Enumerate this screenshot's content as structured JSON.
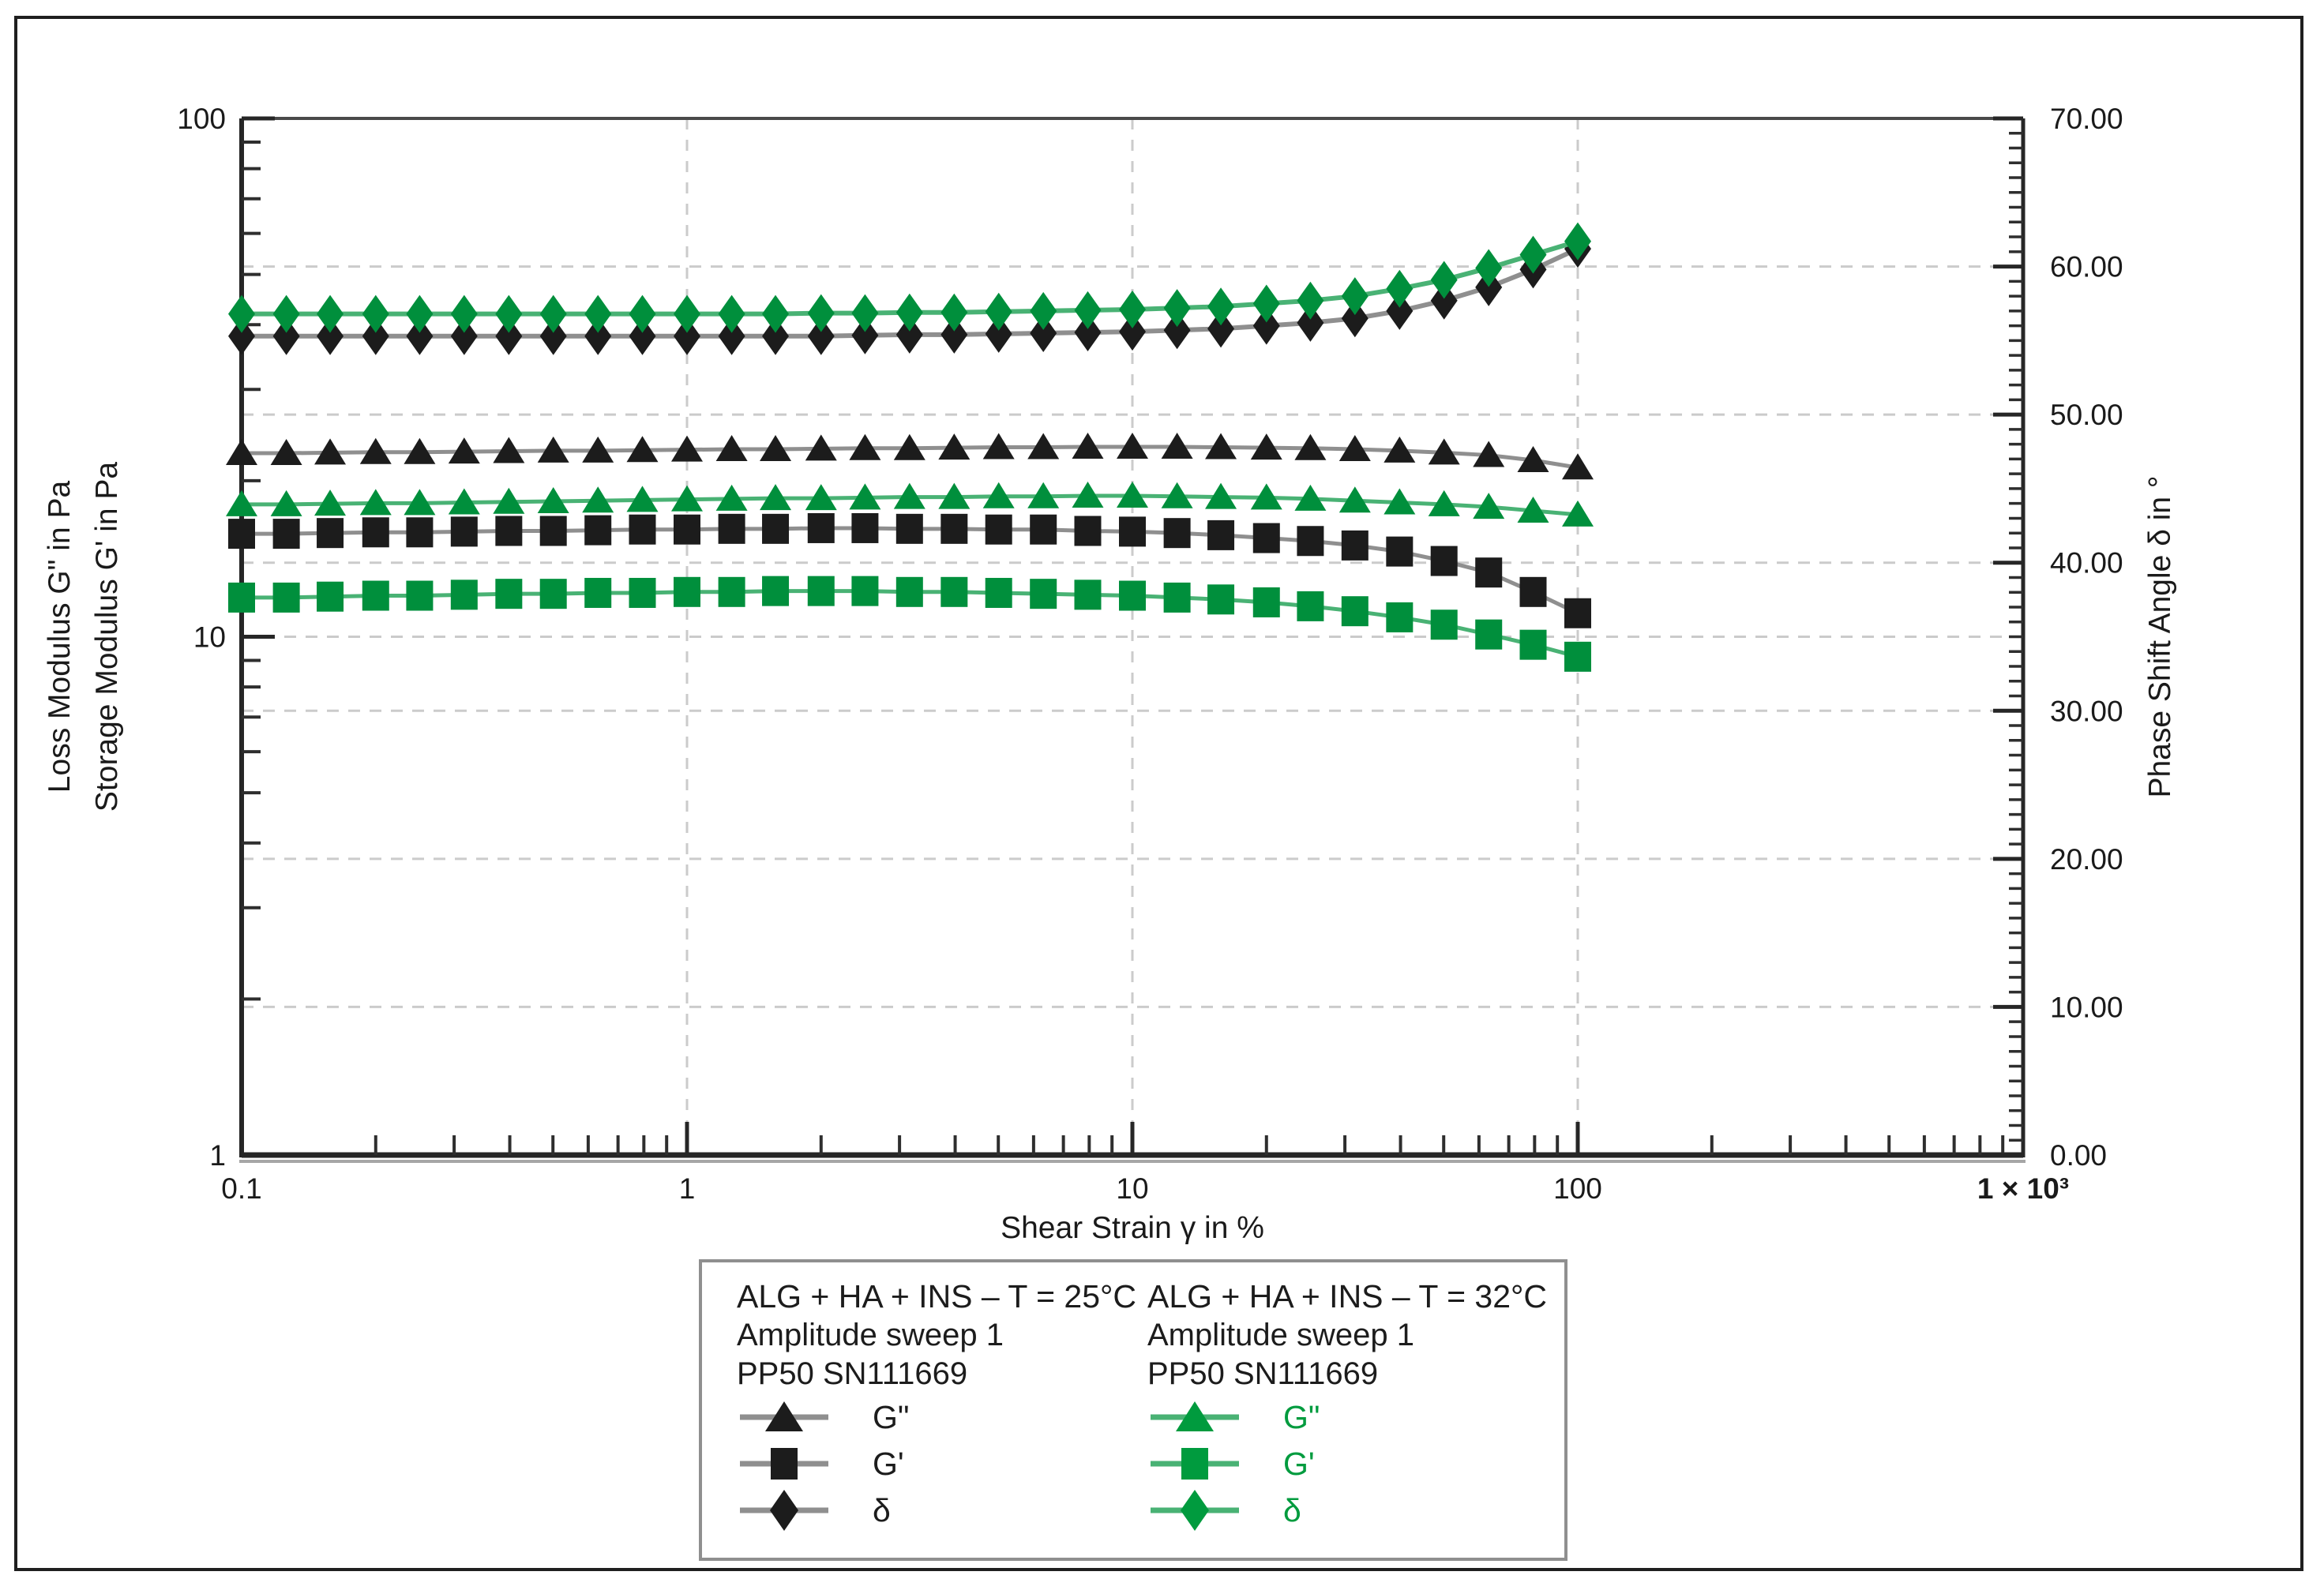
{
  "page": {
    "background": "#ffffff",
    "frame_color": "#1f1f1f"
  },
  "chart_data": {
    "type": "line",
    "title": "",
    "x_axis": {
      "label": "Shear Strain γ in %",
      "scale": "log",
      "min": 0.1,
      "max": 1000,
      "major_ticks": [
        0.1,
        1,
        10,
        100,
        1000
      ],
      "tick_labels": [
        "0.1",
        "1",
        "10",
        "100",
        "1 × 10³"
      ]
    },
    "y_left_axis": {
      "titles": [
        "Loss Modulus  G\" in Pa",
        "Storage Modulus  G' in Pa"
      ],
      "scale": "log",
      "min": 1,
      "max": 100,
      "major_ticks": [
        1,
        10,
        100
      ],
      "tick_labels": [
        "1",
        "10",
        "100"
      ]
    },
    "y_right_axis": {
      "title": "Phase Shift Angle δ in °",
      "scale": "linear",
      "min": 0,
      "max": 70,
      "major_tick_step": 10,
      "minor_tick_step": 1,
      "tick_labels": [
        "0.00",
        "10.00",
        "20.00",
        "30.00",
        "40.00",
        "50.00",
        "60.00",
        "70.00"
      ]
    },
    "gridlines": {
      "color": "#cbcbcb",
      "vertical_at_x": [
        1,
        10,
        100
      ],
      "horizontal_at_right_axis": [
        10,
        20,
        30,
        40,
        50,
        60
      ],
      "horizontal_at_left_axis": [
        10
      ]
    },
    "x": [
      0.1,
      0.126,
      0.158,
      0.2,
      0.251,
      0.316,
      0.398,
      0.501,
      0.631,
      0.794,
      1,
      1.26,
      1.58,
      2,
      2.51,
      3.16,
      3.98,
      5.01,
      6.31,
      7.94,
      10,
      12.6,
      15.8,
      20,
      25.1,
      31.6,
      39.8,
      50.1,
      63.1,
      79.4,
      100
    ],
    "series": [
      {
        "name": "G\"",
        "sample": "ALG + HA + INS – T = 25°C",
        "axis": "left",
        "marker": "triangle",
        "marker_color": "#1c1c1c",
        "line_color": "#8f8f8f",
        "values": [
          22.6,
          22.6,
          22.65,
          22.7,
          22.7,
          22.75,
          22.8,
          22.85,
          22.85,
          22.9,
          22.95,
          23.0,
          23.0,
          23.05,
          23.1,
          23.1,
          23.15,
          23.2,
          23.2,
          23.25,
          23.25,
          23.25,
          23.2,
          23.15,
          23.1,
          23.0,
          22.85,
          22.65,
          22.4,
          21.9,
          21.2
        ]
      },
      {
        "name": "G'",
        "sample": "ALG + HA + INS – T = 25°C",
        "axis": "left",
        "marker": "square",
        "marker_color": "#1c1c1c",
        "line_color": "#8f8f8f",
        "values": [
          15.8,
          15.8,
          15.85,
          15.9,
          15.9,
          15.95,
          16.0,
          16.0,
          16.05,
          16.1,
          16.1,
          16.15,
          16.15,
          16.2,
          16.2,
          16.15,
          16.15,
          16.1,
          16.1,
          16.0,
          15.95,
          15.85,
          15.7,
          15.5,
          15.3,
          15.0,
          14.6,
          14.0,
          13.3,
          12.2,
          11.1
        ]
      },
      {
        "name": "δ",
        "sample": "ALG + HA + INS – T = 25°C",
        "axis": "right",
        "marker": "diamond",
        "marker_color": "#1c1c1c",
        "line_color": "#8f8f8f",
        "values": [
          55.3,
          55.3,
          55.3,
          55.3,
          55.3,
          55.3,
          55.3,
          55.3,
          55.3,
          55.3,
          55.3,
          55.3,
          55.3,
          55.3,
          55.35,
          55.4,
          55.4,
          55.45,
          55.5,
          55.55,
          55.6,
          55.7,
          55.8,
          56.0,
          56.2,
          56.5,
          57.0,
          57.7,
          58.6,
          59.8,
          61.2
        ]
      },
      {
        "name": "G\"",
        "sample": "ALG + HA + INS – T = 32°C",
        "axis": "left",
        "marker": "triangle",
        "marker_color": "#008f3c",
        "line_color": "#49b274",
        "values": [
          18.0,
          18.0,
          18.05,
          18.1,
          18.1,
          18.15,
          18.2,
          18.25,
          18.3,
          18.35,
          18.4,
          18.45,
          18.5,
          18.5,
          18.55,
          18.6,
          18.6,
          18.65,
          18.65,
          18.7,
          18.7,
          18.65,
          18.6,
          18.55,
          18.45,
          18.3,
          18.15,
          18.0,
          17.8,
          17.5,
          17.2
        ]
      },
      {
        "name": "G'",
        "sample": "ALG + HA + INS – T = 32°C",
        "axis": "left",
        "marker": "square",
        "marker_color": "#008f3c",
        "line_color": "#49b274",
        "values": [
          11.9,
          11.9,
          11.95,
          12.0,
          12.0,
          12.05,
          12.1,
          12.1,
          12.15,
          12.15,
          12.2,
          12.2,
          12.25,
          12.25,
          12.25,
          12.2,
          12.2,
          12.15,
          12.1,
          12.05,
          12.0,
          11.9,
          11.8,
          11.65,
          11.45,
          11.2,
          10.9,
          10.55,
          10.1,
          9.65,
          9.15
        ]
      },
      {
        "name": "δ",
        "sample": "ALG + HA + INS – T = 32°C",
        "axis": "right",
        "marker": "diamond",
        "marker_color": "#008f3c",
        "line_color": "#49b274",
        "values": [
          56.8,
          56.8,
          56.8,
          56.8,
          56.8,
          56.8,
          56.8,
          56.8,
          56.8,
          56.8,
          56.8,
          56.8,
          56.8,
          56.85,
          56.85,
          56.9,
          56.9,
          56.95,
          57.0,
          57.05,
          57.1,
          57.2,
          57.3,
          57.5,
          57.7,
          58.0,
          58.5,
          59.1,
          59.9,
          60.8,
          61.7
        ]
      }
    ]
  },
  "legend": {
    "columns": [
      {
        "title": "ALG + HA + INS – T = 25°C",
        "subtitle1": "Amplitude sweep 1",
        "subtitle2": "PP50 SN111669",
        "text_color": "#1c1c1c",
        "series_color": "#1c1c1c",
        "line_color": "#8f8f8f",
        "entries": [
          {
            "marker": "triangle",
            "label": "G\""
          },
          {
            "marker": "square",
            "label": "G'"
          },
          {
            "marker": "diamond",
            "label": "δ"
          }
        ]
      },
      {
        "title": "ALG + HA + INS – T = 32°C",
        "subtitle1": "Amplitude sweep 1",
        "subtitle2": "PP50 SN111669",
        "text_color": "#1c1c1c",
        "series_color": "#009b3e",
        "line_color": "#49b274",
        "entries": [
          {
            "marker": "triangle",
            "label": "G\""
          },
          {
            "marker": "square",
            "label": "G'"
          },
          {
            "marker": "diamond",
            "label": "δ"
          }
        ]
      }
    ]
  }
}
